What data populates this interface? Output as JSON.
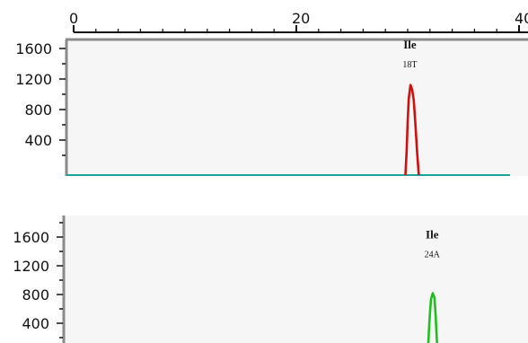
{
  "chart_data": [
    {
      "type": "line",
      "title": "",
      "xlabel": "",
      "ylabel": "",
      "x_axis": {
        "ticks": [
          0,
          20,
          40
        ],
        "tick_labels": [
          "0",
          "20",
          "40"
        ],
        "xlim": [
          0,
          40
        ],
        "position": "top"
      },
      "y_axis": {
        "ticks": [
          400,
          800,
          1200,
          1600
        ],
        "tick_labels": [
          "400",
          "800",
          "1200",
          "1600"
        ],
        "ylim": [
          0,
          1800
        ]
      },
      "grid": false,
      "baseline_color": "#1aa59a",
      "series": [
        {
          "color": "#d01010",
          "points": [
            [
              29.8,
              0
            ],
            [
              29.9,
              300
            ],
            [
              30.0,
              700
            ],
            [
              30.1,
              1000
            ],
            [
              30.25,
              1180
            ],
            [
              30.4,
              1120
            ],
            [
              30.55,
              980
            ],
            [
              30.7,
              650
            ],
            [
              30.85,
              300
            ],
            [
              31.0,
              0
            ]
          ]
        }
      ],
      "annotations": [
        {
          "x": 30.2,
          "y": 1600,
          "name": "Ile",
          "detail": "18T"
        }
      ]
    },
    {
      "type": "line",
      "title": "",
      "xlabel": "",
      "ylabel": "",
      "x_axis": {
        "xlim": [
          0,
          40
        ]
      },
      "y_axis": {
        "ticks": [
          400,
          800,
          1200,
          1600
        ],
        "tick_labels": [
          "400",
          "800",
          "1200",
          "1600"
        ],
        "ylim": [
          0,
          1800
        ]
      },
      "grid": false,
      "series": [
        {
          "color": "#1fbf1f",
          "points": [
            [
              31.8,
              0
            ],
            [
              31.9,
              350
            ],
            [
              32.0,
              600
            ],
            [
              32.1,
              800
            ],
            [
              32.25,
              880
            ],
            [
              32.4,
              820
            ],
            [
              32.5,
              600
            ],
            [
              32.6,
              300
            ],
            [
              32.7,
              0
            ]
          ]
        }
      ],
      "annotations": [
        {
          "x": 32.2,
          "y": 1580,
          "name": "Ile",
          "detail": "24A"
        }
      ]
    }
  ]
}
